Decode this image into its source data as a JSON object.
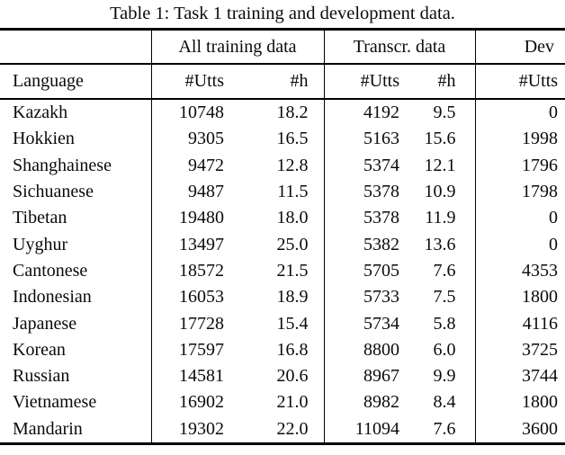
{
  "title": "Table 1: Task 1 training and development data.",
  "table": {
    "group_headers": {
      "all_training": "All training data",
      "transcr": "Transcr. data",
      "dev": "Dev"
    },
    "column_headers": {
      "language": "Language",
      "utts_all": "#Utts",
      "hours_all": "#h",
      "utts_transcr": "#Utts",
      "hours_transcr": "#h",
      "utts_dev": "#Utts"
    },
    "rows": [
      [
        "Kazakh",
        "10748",
        "18.2",
        "4192",
        "9.5",
        "0"
      ],
      [
        "Hokkien",
        "9305",
        "16.5",
        "5163",
        "15.6",
        "1998"
      ],
      [
        "Shanghainese",
        "9472",
        "12.8",
        "5374",
        "12.1",
        "1796"
      ],
      [
        "Sichuanese",
        "9487",
        "11.5",
        "5378",
        "10.9",
        "1798"
      ],
      [
        "Tibetan",
        "19480",
        "18.0",
        "5378",
        "11.9",
        "0"
      ],
      [
        "Uyghur",
        "13497",
        "25.0",
        "5382",
        "13.6",
        "0"
      ],
      [
        "Cantonese",
        "18572",
        "21.5",
        "5705",
        "7.6",
        "4353"
      ],
      [
        "Indonesian",
        "16053",
        "18.9",
        "5733",
        "7.5",
        "1800"
      ],
      [
        "Japanese",
        "17728",
        "15.4",
        "5734",
        "5.8",
        "4116"
      ],
      [
        "Korean",
        "17597",
        "16.8",
        "8800",
        "6.0",
        "3725"
      ],
      [
        "Russian",
        "14581",
        "20.6",
        "8967",
        "9.9",
        "3744"
      ],
      [
        "Vietnamese",
        "16902",
        "21.0",
        "8982",
        "8.4",
        "1800"
      ],
      [
        "Mandarin",
        "19302",
        "22.0",
        "11094",
        "7.6",
        "3600"
      ]
    ]
  },
  "colors": {
    "text": "#0b0b0b",
    "rule": "#000000",
    "background": "#ffffff"
  }
}
